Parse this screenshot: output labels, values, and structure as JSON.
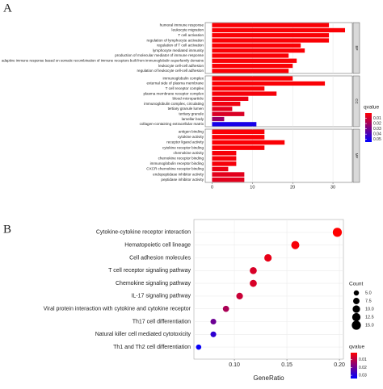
{
  "chart_data": [
    {
      "type": "bar",
      "label": "A",
      "facets": [
        {
          "name": "BP",
          "categories": [
            "humoral immune response",
            "leukocyte migration",
            "T cell activation",
            "regulation of lymphocyte activation",
            "regulation of T cell activation",
            "lymphocyte mediated immunity",
            "production of molecular mediator of immune response",
            "adaptive immune response based on somatic recombination of immune receptors built from immunoglobulin superfamily domains",
            "leukocyte cell-cell adhesion",
            "regulation of leukocyte cell-cell adhesion"
          ],
          "values": [
            29,
            33,
            29,
            29,
            22,
            23,
            19,
            21,
            20,
            19
          ],
          "qvalues": [
            0.001,
            0.001,
            0.001,
            0.001,
            0.001,
            0.001,
            0.001,
            0.001,
            0.001,
            0.001
          ]
        },
        {
          "name": "CC",
          "categories": [
            "immunoglobulin complex",
            "external side of plasma membrane",
            "T cell receptor complex",
            "plasma membrane receptor complex",
            "blood microparticle",
            "immunoglobulin complex, circulating",
            "tertiary granule lumen",
            "tertiary granule",
            "lamellar body",
            "collagen-containing extracellular matrix"
          ],
          "values": [
            20,
            28,
            13,
            16,
            9,
            7,
            5,
            8,
            3,
            11
          ],
          "qvalues": [
            0.001,
            0.001,
            0.001,
            0.002,
            0.004,
            0.003,
            0.006,
            0.008,
            0.022,
            0.05
          ]
        },
        {
          "name": "MF",
          "categories": [
            "antigen binding",
            "cytokine activity",
            "receptor ligand activity",
            "cytokine receptor binding",
            "chemokine activity",
            "chemokine receptor binding",
            "immunoglobulin receptor binding",
            "CXCR chemokine receptor binding",
            "endopeptidase inhibitor activity",
            "peptidase inhibitor activity"
          ],
          "values": [
            13,
            13,
            18,
            13,
            6,
            6,
            6,
            4,
            8,
            8
          ],
          "qvalues": [
            0.001,
            0.001,
            0.001,
            0.001,
            0.002,
            0.002,
            0.002,
            0.004,
            0.006,
            0.006
          ]
        }
      ],
      "xlim": [
        -1.7,
        34.8
      ],
      "xticks": [
        0,
        10,
        20,
        30
      ],
      "grid": true,
      "color_scale": {
        "title": "qvalue",
        "low": "#ff0000",
        "high": "#0000ff",
        "lim": [
          0,
          0.055
        ],
        "ticks": [
          0.01,
          0.02,
          0.03,
          0.04,
          0.05
        ]
      }
    },
    {
      "type": "dot",
      "label": "B",
      "categories": [
        "Cytokine-cytokine receptor interaction",
        "Hematopoietic cell lineage",
        "Cell adhesion molecules",
        "T cell receptor signaling pathway",
        "Chemokine signaling pathway",
        "IL-17 signaling pathway",
        "Viral protein interaction with cytokine and cytokine receptor",
        "Th17 cell differentiation",
        "Natural killer cell mediated cytotoxicity",
        "Th1 and Th2 cell differentiation"
      ],
      "values": [
        0.198,
        0.158,
        0.132,
        0.118,
        0.118,
        0.105,
        0.092,
        0.08,
        0.08,
        0.066
      ],
      "sizes": [
        15,
        12,
        10,
        9,
        9,
        8,
        7,
        6,
        6,
        5
      ],
      "qvalues": [
        0.001,
        0.002,
        0.004,
        0.006,
        0.006,
        0.008,
        0.012,
        0.02,
        0.028,
        0.033
      ],
      "xlabel": "GeneRatio",
      "xlim": [
        0.0615,
        0.2038
      ],
      "xticks": [
        {
          "value": 0.1,
          "label": "0.10"
        },
        0.15,
        {
          "value": 0.2,
          "label": "0.20"
        }
      ],
      "grid": true,
      "size_legend": {
        "title": "Count",
        "ticks": [
          {
            "value": 5,
            "label": "5.0"
          },
          7.5,
          {
            "value": 10,
            "label": "10.0"
          },
          12.5,
          {
            "value": 15,
            "label": "15.0"
          }
        ]
      },
      "color_scale": {
        "title": "qvalue",
        "low": "#ff0000",
        "high": "#0000ff",
        "lim": [
          0.001,
          0.034
        ],
        "ticks": [
          0.01,
          0.02,
          0.03
        ]
      }
    }
  ]
}
